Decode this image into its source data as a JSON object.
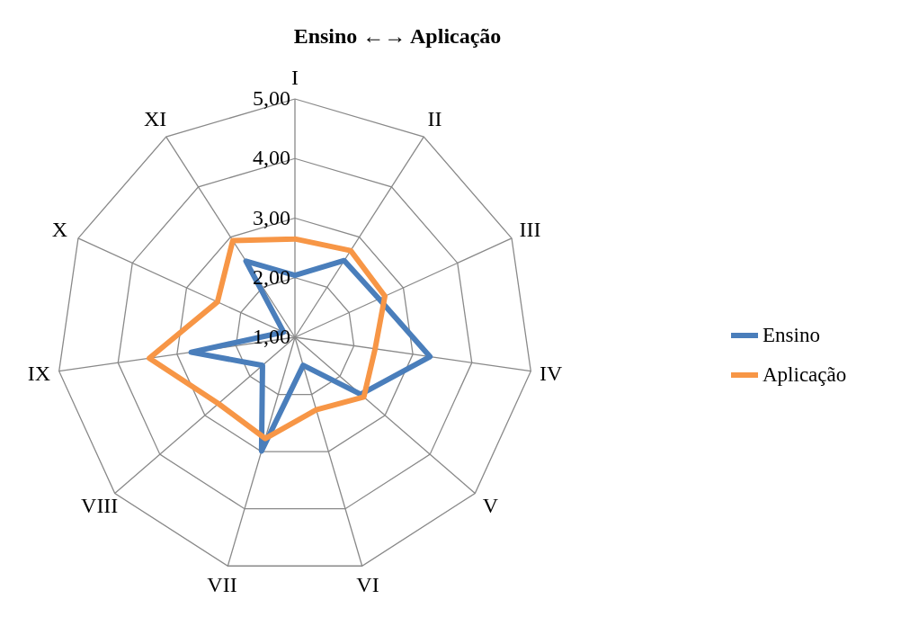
{
  "chart_data": {
    "type": "radar",
    "title": "Ensino ←→ Aplicação",
    "categories": [
      "I",
      "II",
      "III",
      "IV",
      "V",
      "VI",
      "VII",
      "VIII",
      "IX",
      "X",
      "XI"
    ],
    "series": [
      {
        "name": "Ensino",
        "color": "#4a7ebb",
        "values": [
          2.04,
          2.53,
          2.55,
          3.29,
          2.46,
          1.49,
          2.99,
          1.72,
          2.76,
          1.21,
          2.52
        ]
      },
      {
        "name": "Aplicação",
        "color": "#f79646",
        "values": [
          2.65,
          2.73,
          2.66,
          2.36,
          2.53,
          2.27,
          2.77,
          2.7,
          3.47,
          2.43,
          2.93
        ]
      }
    ],
    "ylim": [
      1,
      5
    ],
    "yticks": [
      {
        "value": 1,
        "label": "1,00"
      },
      {
        "value": 2,
        "label": "2,00"
      },
      {
        "value": 3,
        "label": "3,00"
      },
      {
        "value": 4,
        "label": "4,00"
      },
      {
        "value": 5,
        "label": "5,00"
      }
    ],
    "grid": true,
    "legend": "right",
    "line_style": "solid"
  }
}
